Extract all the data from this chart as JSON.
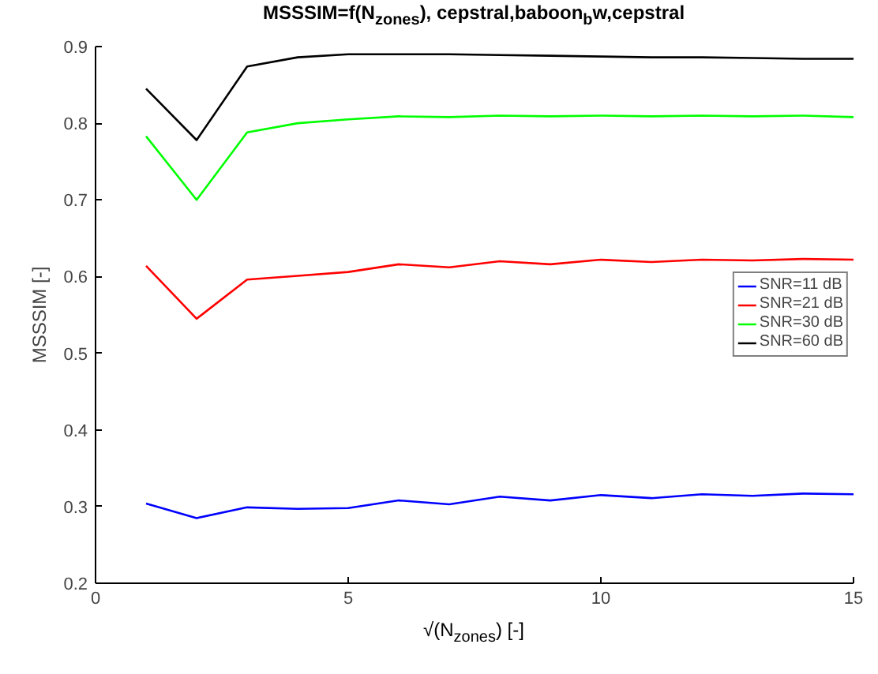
{
  "chart_data": {
    "type": "line",
    "title": "MSSSIM=f(N$_{zones}$), cepstral,baboon$_{b}$w,cepstral",
    "xlabel": "√(N$_{zones}$) [-]",
    "ylabel": "MSSSIM [-]",
    "x": [
      1,
      2,
      3,
      4,
      5,
      6,
      7,
      8,
      9,
      10,
      11,
      12,
      13,
      14,
      15
    ],
    "series": [
      {
        "name": "SNR=11 dB",
        "color": "#0000ff",
        "values": [
          0.304,
          0.285,
          0.299,
          0.297,
          0.298,
          0.308,
          0.303,
          0.313,
          0.308,
          0.315,
          0.311,
          0.316,
          0.314,
          0.317,
          0.316
        ]
      },
      {
        "name": "SNR=21 dB",
        "color": "#ff0000",
        "values": [
          0.614,
          0.545,
          0.596,
          0.601,
          0.606,
          0.616,
          0.612,
          0.62,
          0.616,
          0.622,
          0.619,
          0.622,
          0.621,
          0.623,
          0.622
        ]
      },
      {
        "name": "SNR=30 dB",
        "color": "#00ff00",
        "values": [
          0.783,
          0.7,
          0.788,
          0.8,
          0.805,
          0.809,
          0.808,
          0.81,
          0.809,
          0.81,
          0.809,
          0.81,
          0.809,
          0.81,
          0.808
        ]
      },
      {
        "name": "SNR=60 dB",
        "color": "#000000",
        "values": [
          0.845,
          0.778,
          0.874,
          0.886,
          0.89,
          0.89,
          0.89,
          0.889,
          0.888,
          0.887,
          0.886,
          0.886,
          0.885,
          0.884,
          0.884
        ]
      }
    ],
    "xlim": [
      0,
      15
    ],
    "ylim": [
      0.2,
      0.9
    ],
    "xticks": [
      0,
      5,
      10,
      15
    ],
    "yticks": [
      0.2,
      0.3,
      0.4,
      0.5,
      0.6,
      0.7,
      0.8,
      0.9
    ],
    "grid": false,
    "legend": "right",
    "marker": "none",
    "line_style": "solid"
  }
}
